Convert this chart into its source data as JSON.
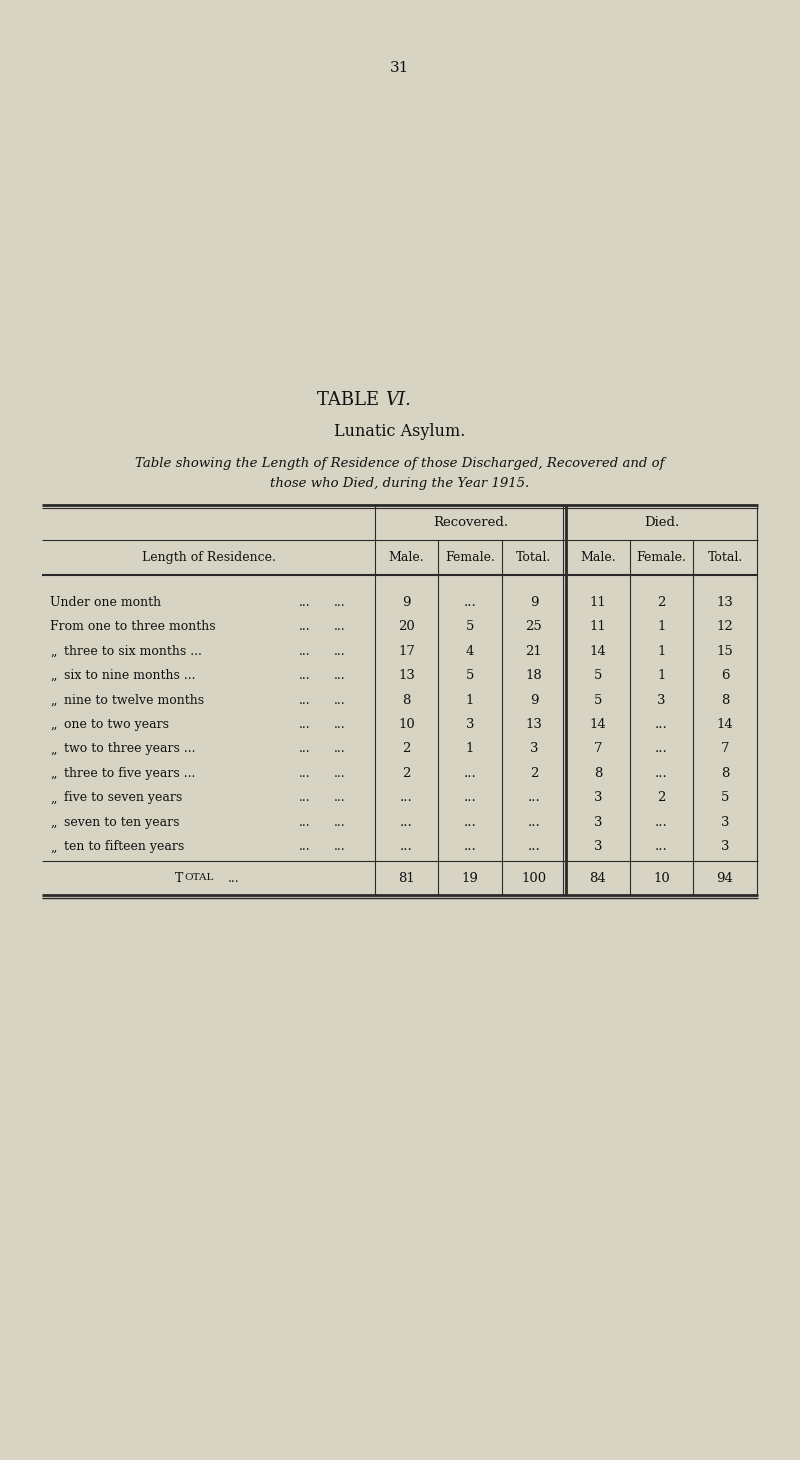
{
  "page_number": "31",
  "title_normal": "TABLE ",
  "title_italic": "VI.",
  "subtitle": "Lunatic Asylum.",
  "desc_line1": "Table showing the Length of Residence of those Discharged, Recovered and of",
  "desc_line2": "those who Died, during the Year 1915.",
  "row_header_label": "Length of Residence.",
  "col_headers_top": [
    "Recovered.",
    "Died."
  ],
  "col_headers_sub": [
    "Male.",
    "Female.",
    "Total.",
    "Male.",
    "Female.",
    "Total."
  ],
  "rows": [
    {
      "label": "Under one month",
      "indent": false,
      "dots_mid": [
        "...",
        "..."
      ],
      "values": [
        "9",
        "...",
        "9",
        "11",
        "2",
        "13"
      ]
    },
    {
      "label": "From one to three months",
      "indent": false,
      "dots_mid": [
        "...",
        "..."
      ],
      "values": [
        "20",
        "5",
        "25",
        "11",
        "1",
        "12"
      ]
    },
    {
      "label": "three to six months ...",
      "indent": true,
      "dots_mid": [
        "...",
        "..."
      ],
      "values": [
        "17",
        "4",
        "21",
        "14",
        "1",
        "15"
      ]
    },
    {
      "label": "six to nine months ...",
      "indent": true,
      "dots_mid": [
        "...",
        "..."
      ],
      "values": [
        "13",
        "5",
        "18",
        "5",
        "1",
        "6"
      ]
    },
    {
      "label": "nine to twelve months",
      "indent": true,
      "dots_mid": [
        "...",
        "..."
      ],
      "values": [
        "8",
        "1",
        "9",
        "5",
        "3",
        "8"
      ]
    },
    {
      "label": "one to two years",
      "indent": true,
      "dots_mid": [
        "...",
        "..."
      ],
      "values": [
        "10",
        "3",
        "13",
        "14",
        "...",
        "14"
      ]
    },
    {
      "label": "two to three years ...",
      "indent": true,
      "dots_mid": [
        "...",
        "..."
      ],
      "values": [
        "2",
        "1",
        "3",
        "7",
        "...",
        "7"
      ]
    },
    {
      "label": "three to five years ...",
      "indent": true,
      "dots_mid": [
        "...",
        "..."
      ],
      "values": [
        "2",
        "...",
        "2",
        "8",
        "...",
        "8"
      ]
    },
    {
      "label": "five to seven years",
      "indent": true,
      "dots_mid": [
        "...",
        "..."
      ],
      "values": [
        "...",
        "...",
        "...",
        "3",
        "2",
        "5"
      ]
    },
    {
      "label": "seven to ten years",
      "indent": true,
      "dots_mid": [
        "...",
        "..."
      ],
      "values": [
        "...",
        "...",
        "...",
        "3",
        "...",
        "3"
      ]
    },
    {
      "label": "ten to fifteen years",
      "indent": true,
      "dots_mid": [
        "...",
        "..."
      ],
      "values": [
        "...",
        "...",
        "...",
        "3",
        "...",
        "3"
      ]
    }
  ],
  "total_label": "Total",
  "total_dots": "...",
  "total_values": [
    "81",
    "19",
    "100",
    "84",
    "10",
    "94"
  ],
  "bg_color": "#d8d4c4",
  "text_color": "#111111",
  "line_color": "#2a2a2a"
}
